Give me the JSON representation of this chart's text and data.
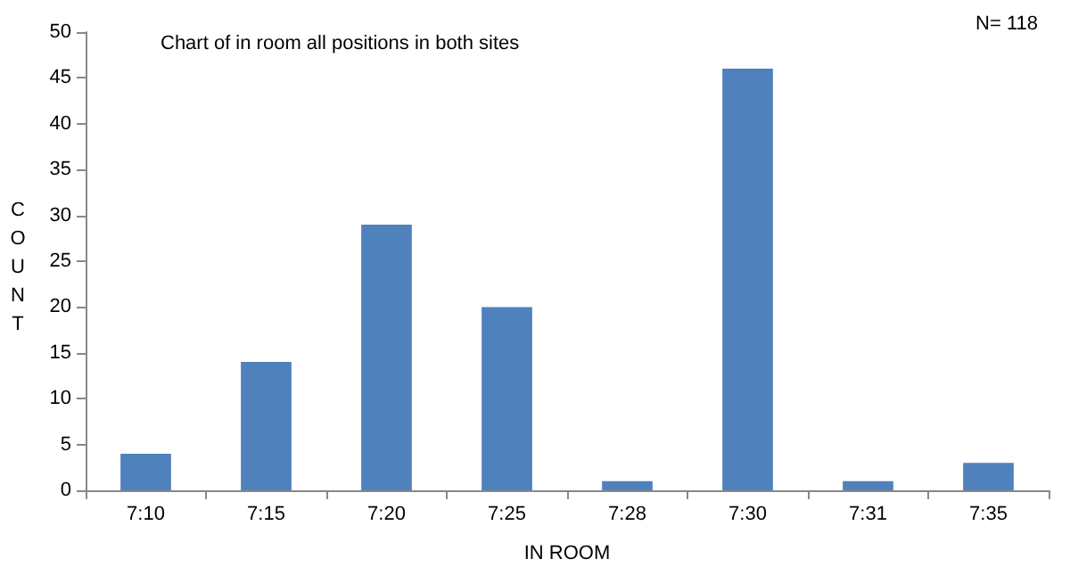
{
  "chart_data": {
    "type": "bar",
    "title": "Chart of in room all positions in both sites",
    "xlabel": "IN ROOM",
    "ylabel": "COUNT",
    "annotations": [
      "N= 118"
    ],
    "categories": [
      "7:10",
      "7:15",
      "7:20",
      "7:25",
      "7:28",
      "7:30",
      "7:31",
      "7:35"
    ],
    "values": [
      4,
      14,
      29,
      20,
      1,
      46,
      1,
      3
    ],
    "color": "#4f81bd",
    "ylim": [
      0,
      50
    ],
    "yticks": [
      0,
      5,
      10,
      15,
      20,
      25,
      30,
      35,
      40,
      45,
      50
    ],
    "grid": false
  }
}
